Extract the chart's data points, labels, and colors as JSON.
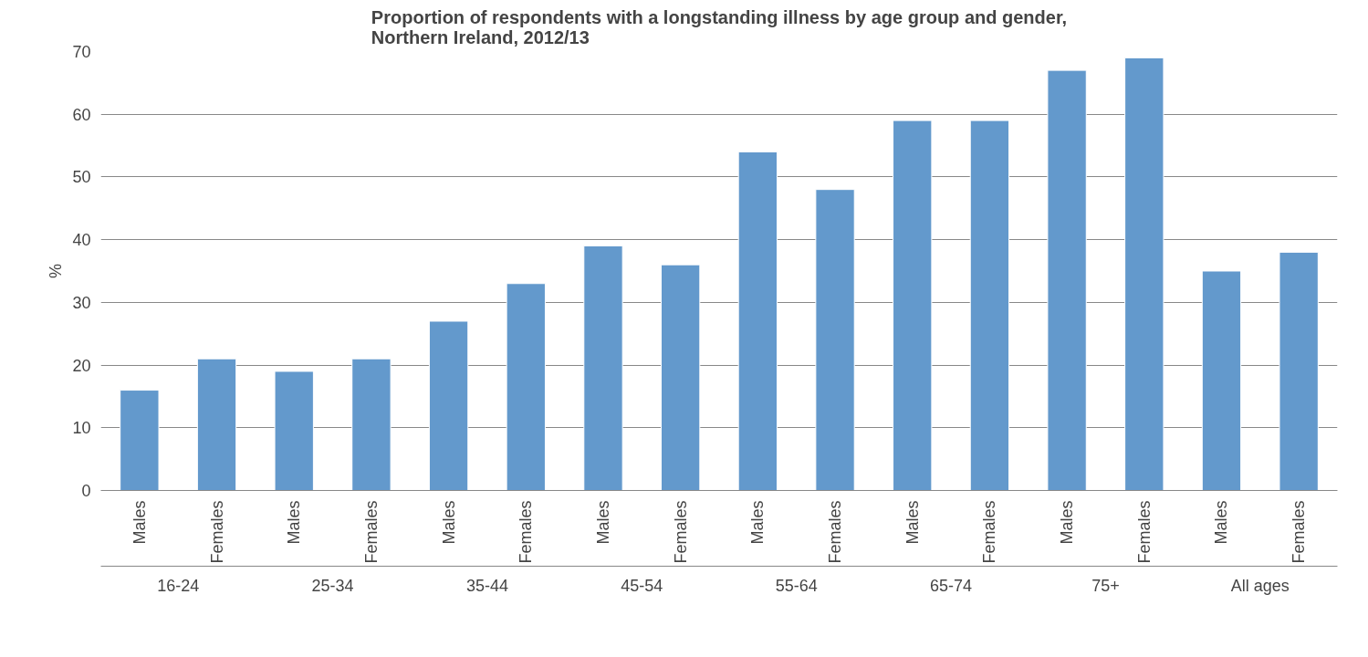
{
  "chart_data": {
    "type": "bar",
    "title": "Proportion of respondents with a longstanding illness by age group and gender,\nNorthern Ireland, 2012/13",
    "ylabel": "%",
    "categories": [
      "Males",
      "Females",
      "Males",
      "Females",
      "Males",
      "Females",
      "Males",
      "Females",
      "Males",
      "Females",
      "Males",
      "Females",
      "Males",
      "Females",
      "Males",
      "Females"
    ],
    "values": [
      16,
      21,
      19,
      21,
      27,
      33,
      39,
      36,
      54,
      48,
      59,
      59,
      67,
      69,
      35,
      38
    ],
    "color": "#6399cc",
    "ylim": [
      0,
      70
    ],
    "yticks": [
      0,
      10,
      20,
      30,
      40,
      50,
      60,
      70
    ],
    "grid": "y",
    "annotations": [
      "16-24",
      "25-34",
      "35-44",
      "45-54",
      "55-64",
      "65-74",
      "75+",
      "All ages"
    ]
  }
}
